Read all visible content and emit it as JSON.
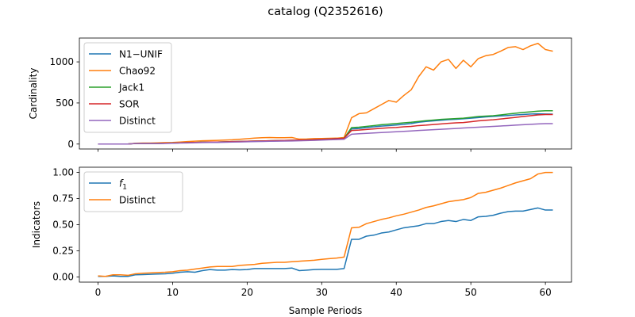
{
  "figure": {
    "title": "catalog (Q2352616)"
  },
  "chart_data": [
    {
      "type": "line",
      "ylabel": "Cardinality",
      "xlabel": "",
      "xlim": [
        -2.5,
        63.5
      ],
      "ylim": [
        -60,
        1290
      ],
      "xticks": [
        0,
        10,
        20,
        30,
        40,
        50,
        60
      ],
      "yticks": [
        0,
        500,
        1000
      ],
      "legend": "upper-left",
      "series": [
        {
          "name": "N1−UNIF",
          "color": "#1f77b4",
          "values": [
            0,
            0,
            0,
            0,
            0,
            8,
            8,
            8,
            8,
            10,
            12,
            15,
            18,
            20,
            22,
            24,
            25,
            27,
            28,
            30,
            31,
            33,
            35,
            36,
            38,
            40,
            42,
            45,
            48,
            52,
            55,
            58,
            62,
            65,
            185,
            190,
            200,
            210,
            218,
            225,
            232,
            240,
            250,
            265,
            275,
            282,
            290,
            297,
            302,
            308,
            315,
            322,
            330,
            336,
            342,
            348,
            355,
            360,
            365,
            368,
            366,
            364
          ]
        },
        {
          "name": "Chao92",
          "color": "#ff7f0e",
          "values": [
            0,
            0,
            0,
            0,
            0,
            10,
            12,
            12,
            15,
            18,
            20,
            25,
            30,
            35,
            40,
            42,
            45,
            48,
            52,
            58,
            65,
            72,
            78,
            80,
            78,
            78,
            80,
            60,
            62,
            66,
            68,
            70,
            72,
            80,
            320,
            370,
            380,
            430,
            480,
            530,
            510,
            590,
            660,
            820,
            940,
            900,
            1000,
            1030,
            920,
            1020,
            940,
            1040,
            1075,
            1090,
            1130,
            1175,
            1185,
            1150,
            1195,
            1225,
            1150,
            1130
          ]
        },
        {
          "name": "Jack1",
          "color": "#2ca02c",
          "values": [
            0,
            0,
            0,
            0,
            0,
            8,
            8,
            8,
            8,
            10,
            12,
            15,
            18,
            20,
            22,
            24,
            25,
            27,
            30,
            32,
            34,
            36,
            38,
            40,
            42,
            44,
            46,
            48,
            50,
            54,
            58,
            62,
            66,
            70,
            200,
            205,
            215,
            225,
            235,
            242,
            250,
            258,
            265,
            275,
            285,
            292,
            300,
            305,
            310,
            315,
            325,
            335,
            340,
            345,
            355,
            365,
            375,
            385,
            392,
            400,
            405,
            405
          ]
        },
        {
          "name": "SOR",
          "color": "#d62728",
          "values": [
            0,
            0,
            0,
            0,
            0,
            8,
            8,
            8,
            8,
            10,
            12,
            15,
            18,
            20,
            22,
            24,
            25,
            27,
            30,
            32,
            34,
            36,
            38,
            40,
            42,
            44,
            46,
            48,
            50,
            54,
            58,
            62,
            66,
            70,
            165,
            170,
            178,
            185,
            192,
            198,
            202,
            210,
            215,
            225,
            230,
            238,
            245,
            252,
            258,
            262,
            272,
            282,
            290,
            296,
            305,
            315,
            325,
            335,
            345,
            355,
            360,
            360
          ]
        },
        {
          "name": "Distinct",
          "color": "#9467bd",
          "values": [
            0,
            0,
            0,
            0,
            0,
            6,
            6,
            6,
            6,
            8,
            10,
            12,
            14,
            16,
            18,
            20,
            20,
            22,
            24,
            26,
            28,
            30,
            32,
            34,
            35,
            36,
            38,
            40,
            42,
            45,
            48,
            52,
            55,
            58,
            120,
            125,
            130,
            135,
            140,
            145,
            150,
            155,
            160,
            165,
            170,
            175,
            180,
            185,
            190,
            195,
            200,
            205,
            210,
            215,
            220,
            225,
            230,
            235,
            240,
            245,
            248,
            248
          ]
        }
      ]
    },
    {
      "type": "line",
      "ylabel": "Indicators",
      "xlabel": "Sample Periods",
      "xlim": [
        -2.5,
        63.5
      ],
      "ylim": [
        -0.05,
        1.05
      ],
      "xticks": [
        0,
        10,
        20,
        30,
        40,
        50,
        60
      ],
      "xtick_labels": [
        "0",
        "10",
        "20",
        "30",
        "40",
        "50",
        "60"
      ],
      "yticks": [
        0.0,
        0.25,
        0.5,
        0.75,
        1.0
      ],
      "ytick_labels": [
        "0.00",
        "0.25",
        "0.50",
        "0.75",
        "1.00"
      ],
      "legend": "upper-left",
      "series": [
        {
          "name": "f",
          "name_subscript": "1",
          "color": "#1f77b4",
          "values": [
            0.005,
            0.005,
            0.01,
            0.005,
            0.005,
            0.02,
            0.022,
            0.025,
            0.028,
            0.03,
            0.035,
            0.045,
            0.05,
            0.045,
            0.06,
            0.07,
            0.065,
            0.065,
            0.07,
            0.068,
            0.07,
            0.08,
            0.08,
            0.08,
            0.08,
            0.08,
            0.085,
            0.06,
            0.065,
            0.07,
            0.072,
            0.072,
            0.072,
            0.08,
            0.36,
            0.36,
            0.39,
            0.4,
            0.42,
            0.43,
            0.45,
            0.47,
            0.48,
            0.49,
            0.51,
            0.51,
            0.53,
            0.54,
            0.53,
            0.55,
            0.54,
            0.575,
            0.58,
            0.59,
            0.61,
            0.625,
            0.63,
            0.63,
            0.645,
            0.66,
            0.64,
            0.64
          ]
        },
        {
          "name": "Distinct",
          "color": "#ff7f0e",
          "values": [
            0.01,
            0.005,
            0.02,
            0.02,
            0.015,
            0.03,
            0.035,
            0.038,
            0.042,
            0.045,
            0.05,
            0.06,
            0.065,
            0.075,
            0.085,
            0.095,
            0.1,
            0.1,
            0.1,
            0.11,
            0.115,
            0.12,
            0.13,
            0.135,
            0.14,
            0.14,
            0.145,
            0.15,
            0.155,
            0.16,
            0.168,
            0.175,
            0.18,
            0.19,
            0.47,
            0.475,
            0.51,
            0.53,
            0.55,
            0.565,
            0.585,
            0.6,
            0.62,
            0.64,
            0.665,
            0.68,
            0.7,
            0.72,
            0.73,
            0.74,
            0.76,
            0.8,
            0.81,
            0.83,
            0.85,
            0.875,
            0.9,
            0.92,
            0.94,
            0.985,
            1.0,
            1.0
          ]
        }
      ]
    }
  ]
}
